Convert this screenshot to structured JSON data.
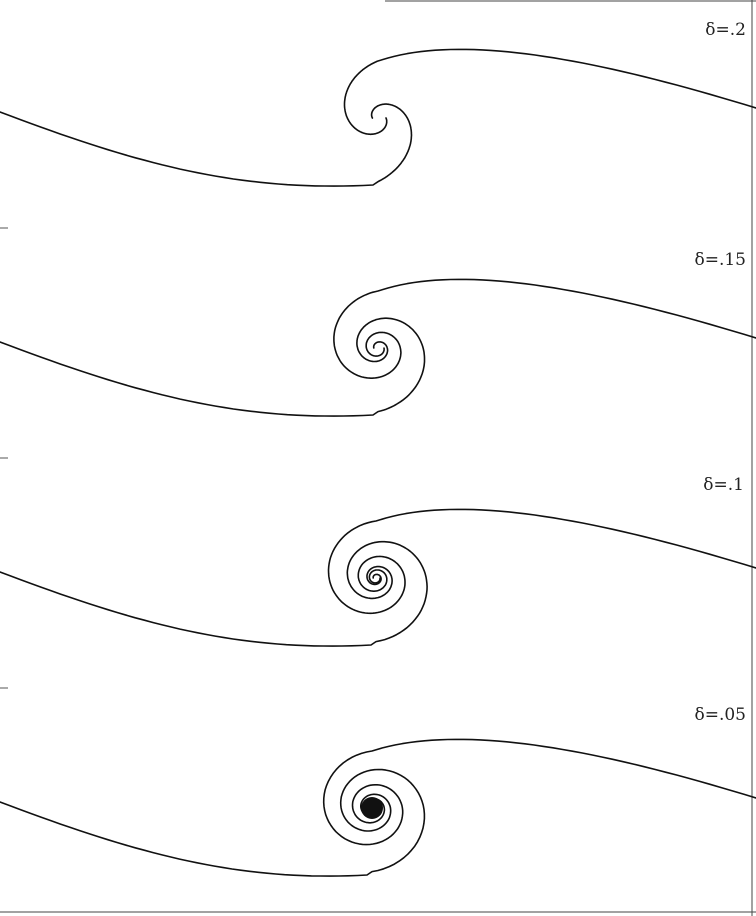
{
  "figure": {
    "panels": [
      {
        "delta": 0.2,
        "label": "δ=.2"
      },
      {
        "delta": 0.15,
        "label": "δ=.15"
      },
      {
        "delta": 0.1,
        "label": "δ=.1"
      },
      {
        "delta": 0.05,
        "label": "δ=.05"
      }
    ]
  },
  "colors": {
    "curve": "#111111",
    "background": "#ffffff"
  }
}
